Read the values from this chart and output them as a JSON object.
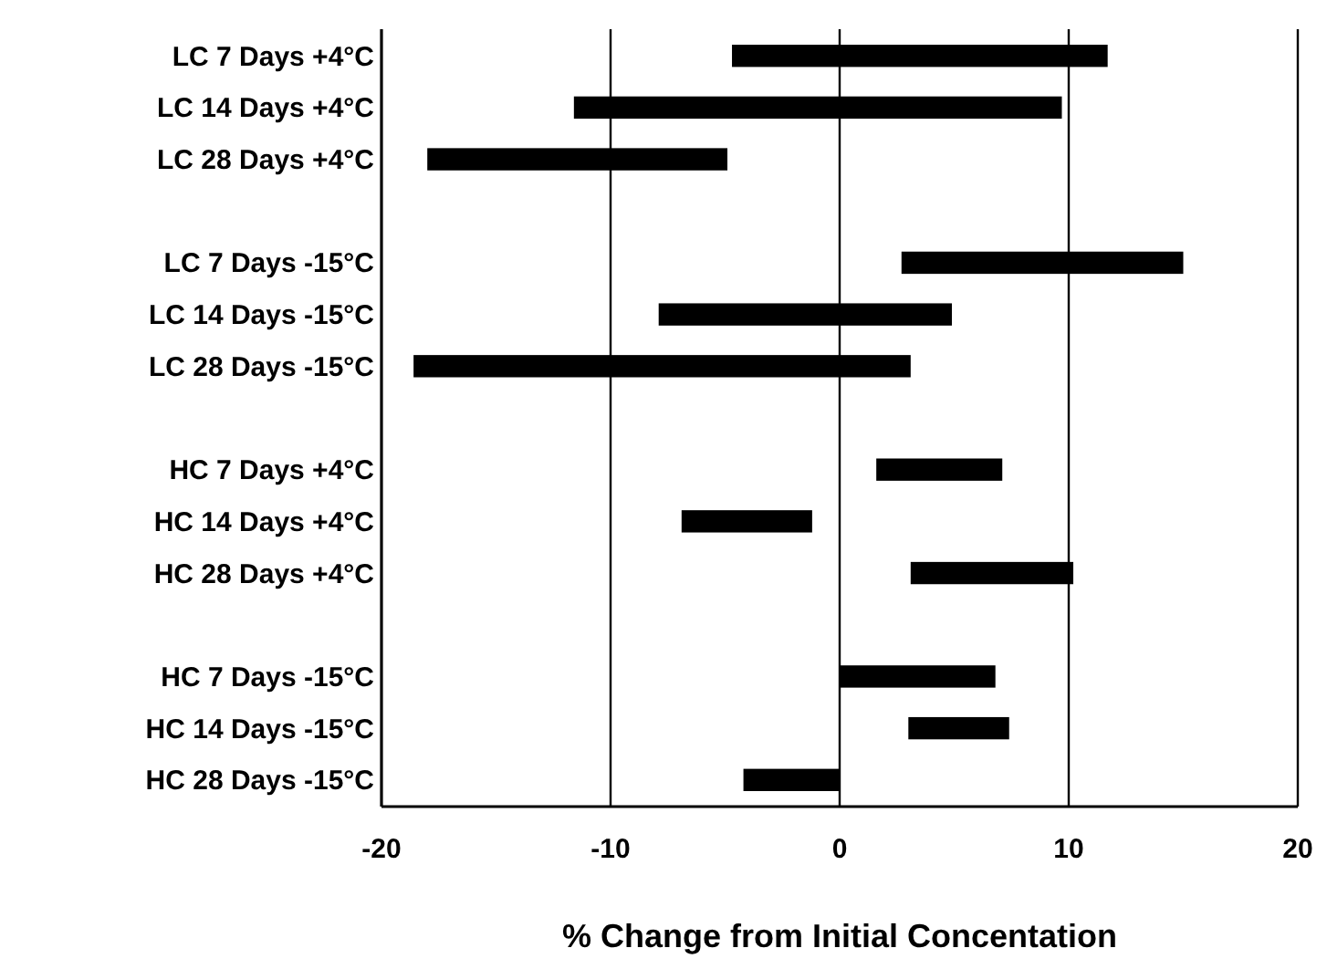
{
  "chart_data": {
    "type": "bar",
    "orientation": "horizontal",
    "categories": [
      "LC 7 Days +4°C",
      "LC 14 Days +4°C",
      "LC 28 Days +4°C",
      null,
      "LC 7 Days -15°C",
      "LC 14 Days -15°C",
      "LC 28 Days -15°C",
      null,
      "HC 7 Days +4°C",
      "HC 14 Days +4°C",
      "HC 28 Days +4°C",
      null,
      "HC 7 Days -15°C",
      "HC 14 Days -15°C",
      "HC 28 Days -15°C"
    ],
    "base": [
      -4.7,
      -11.6,
      -18.0,
      null,
      2.7,
      -7.9,
      -18.6,
      null,
      1.6,
      -6.9,
      3.1,
      null,
      0,
      3.0,
      -4.2
    ],
    "values": [
      16.4,
      21.3,
      13.1,
      null,
      12.3,
      12.8,
      21.7,
      null,
      5.5,
      5.7,
      7.1,
      null,
      6.8,
      4.4,
      4.2
    ],
    "color": "#000000",
    "xlabel": "% Change from Initial Concentation",
    "xlim": [
      -20,
      20
    ],
    "xticks": [
      -20,
      -10,
      0,
      10,
      20
    ],
    "grid": "x"
  }
}
